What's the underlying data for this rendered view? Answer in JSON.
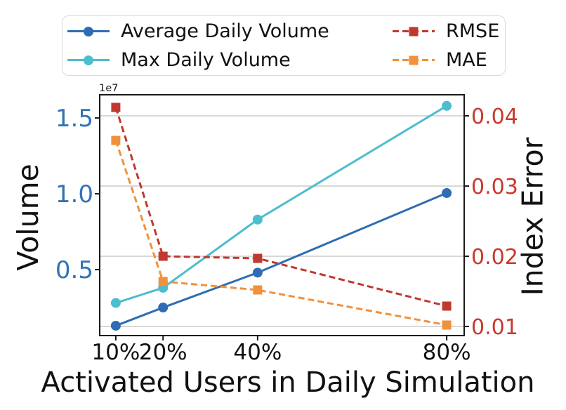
{
  "figure": {
    "background": "#ffffff"
  },
  "colors": {
    "left_axis_tick": "#3273B5",
    "right_axis_tick": "#C9392E",
    "grid": "#CCCCCC",
    "spine": "#1A1A1A",
    "text": "#111111",
    "legend_border": "#D9D9D9"
  },
  "legend": {
    "entries": [
      {
        "label": "Average Daily Volume",
        "color": "#2E6DB4",
        "dash": "solid",
        "marker": "circle"
      },
      {
        "label": "Max Daily Volume",
        "color": "#4DBDCF",
        "dash": "solid",
        "marker": "circle"
      },
      {
        "label": "RMSE",
        "color": "#BF392E",
        "dash": "dashed",
        "marker": "square"
      },
      {
        "label": "MAE",
        "color": "#F0913C",
        "dash": "dashed",
        "marker": "square"
      }
    ]
  },
  "chart_data": {
    "type": "line",
    "title": "",
    "x_categories": [
      "10%",
      "20%",
      "40%",
      "80%"
    ],
    "x_values": [
      10,
      20,
      40,
      80
    ],
    "x_axis": {
      "label": "Activated Users in Daily Simulation",
      "lim": [
        6.6,
        83.7
      ],
      "ticks": [
        {
          "v": 10,
          "t": "10%"
        },
        {
          "v": 20,
          "t": "20%"
        },
        {
          "v": 40,
          "t": "40%"
        },
        {
          "v": 80,
          "t": "80%"
        }
      ]
    },
    "left_axis": {
      "label": "Volume",
      "offset_text": "1e7",
      "lim": [
        650000,
        16530000
      ],
      "tick_color": "#3273B5",
      "ticks": [
        {
          "v": 5000000,
          "t": "0.5"
        },
        {
          "v": 10000000,
          "t": "1.0"
        },
        {
          "v": 15000000,
          "t": "1.5"
        }
      ]
    },
    "right_axis": {
      "label": "Index Error",
      "lim": [
        0.0087,
        0.043
      ],
      "tick_color": "#C9392E",
      "grid": true,
      "ticks": [
        {
          "v": 0.01,
          "t": "0.01"
        },
        {
          "v": 0.02,
          "t": "0.02"
        },
        {
          "v": 0.03,
          "t": "0.03"
        },
        {
          "v": 0.04,
          "t": "0.04"
        }
      ]
    },
    "series": [
      {
        "name": "Average Daily Volume",
        "axis": "left",
        "style": "solid",
        "marker": "circle",
        "color": "#2E6DB4",
        "values": [
          1300000,
          2500000,
          4800000,
          10050000
        ]
      },
      {
        "name": "Max Daily Volume",
        "axis": "left",
        "style": "solid",
        "marker": "circle",
        "color": "#4DBDCF",
        "values": [
          2800000,
          3800000,
          8300000,
          15800000
        ]
      },
      {
        "name": "RMSE",
        "axis": "right",
        "style": "dashed",
        "marker": "square",
        "color": "#BF392E",
        "values": [
          0.0412,
          0.02,
          0.0197,
          0.0129
        ]
      },
      {
        "name": "MAE",
        "axis": "right",
        "style": "dashed",
        "marker": "square",
        "color": "#F0913C",
        "values": [
          0.0365,
          0.0164,
          0.0152,
          0.0102
        ]
      }
    ],
    "legend_position": "top",
    "grid": "horizontal"
  }
}
